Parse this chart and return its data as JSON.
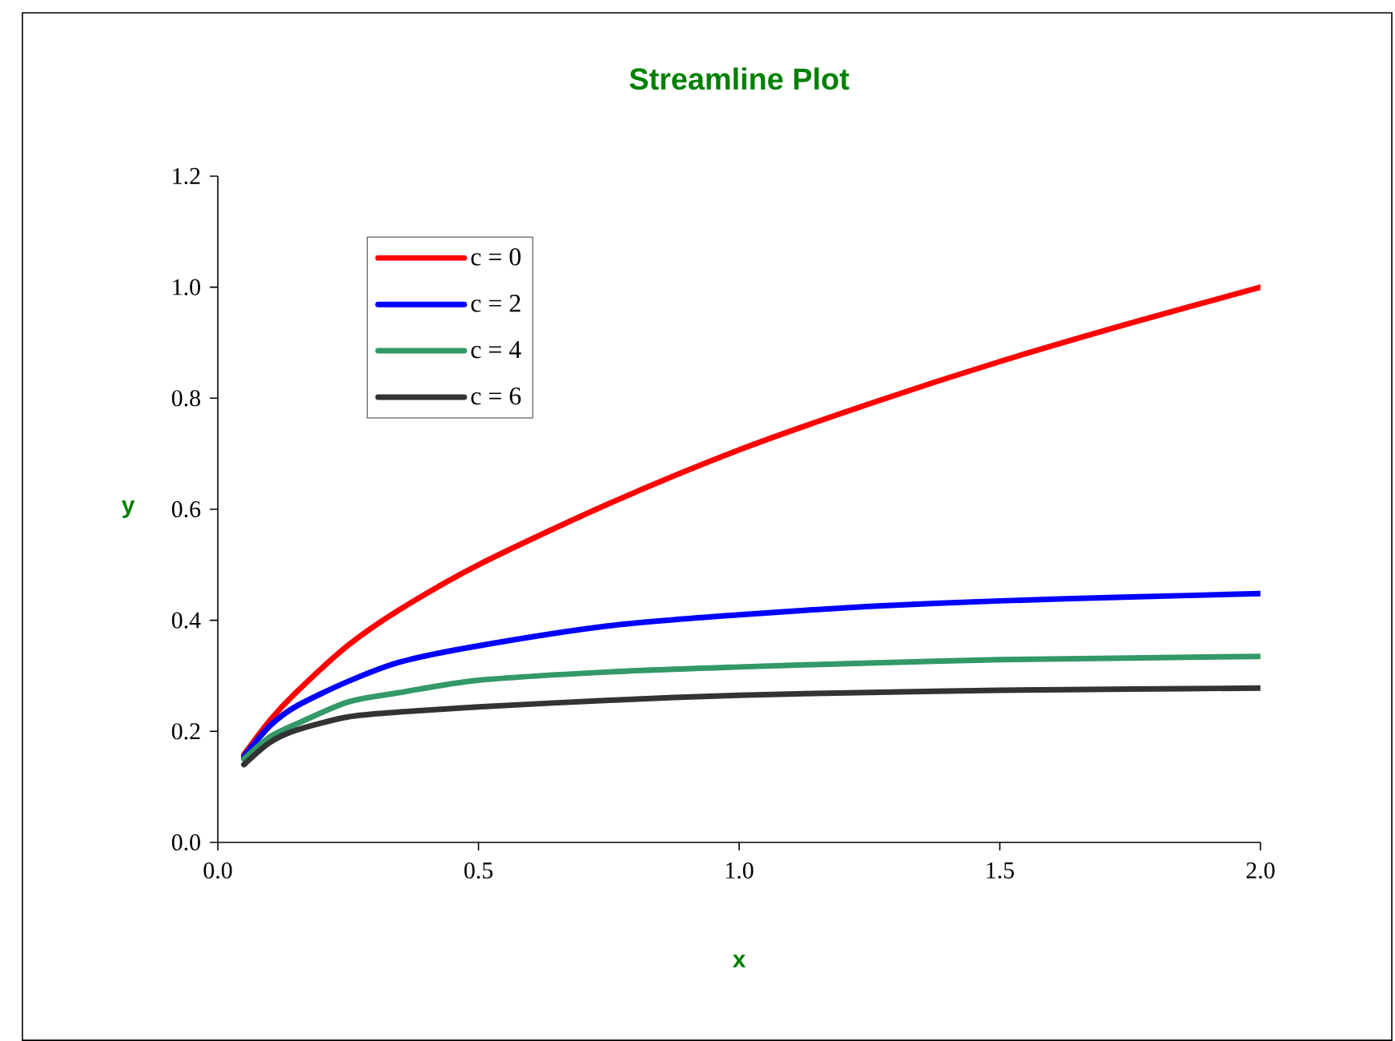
{
  "chart_data": {
    "type": "line",
    "title": "Streamline Plot",
    "xlabel": "x",
    "ylabel": "y",
    "x": [
      0.05,
      0.1,
      0.15,
      0.25,
      0.35,
      0.5,
      0.75,
      1.0,
      1.25,
      1.5,
      1.75,
      2.0
    ],
    "series": [
      {
        "name": "c = 0",
        "color": "#ff0000",
        "values": [
          0.158,
          0.22,
          0.27,
          0.355,
          0.42,
          0.5,
          0.61,
          0.707,
          0.79,
          0.866,
          0.935,
          1.0
        ]
      },
      {
        "name": "c = 2",
        "color": "#0000ff",
        "values": [
          0.155,
          0.21,
          0.245,
          0.29,
          0.325,
          0.354,
          0.39,
          0.41,
          0.425,
          0.435,
          0.442,
          0.448
        ]
      },
      {
        "name": "c = 4",
        "color": "#339966",
        "values": [
          0.15,
          0.19,
          0.213,
          0.253,
          0.27,
          0.292,
          0.307,
          0.316,
          0.323,
          0.329,
          0.332,
          0.335
        ]
      },
      {
        "name": "c = 6",
        "color": "#333333",
        "values": [
          0.14,
          0.18,
          0.202,
          0.226,
          0.235,
          0.244,
          0.256,
          0.265,
          0.27,
          0.274,
          0.276,
          0.278
        ]
      }
    ],
    "xlim": [
      0,
      2
    ],
    "ylim": [
      0,
      1.2
    ],
    "xticks": [
      {
        "value": 0,
        "label": "0.0"
      },
      {
        "value": 0.5,
        "label": "0.5"
      },
      {
        "value": 1,
        "label": "1.0"
      },
      {
        "value": 1.5,
        "label": "1.5"
      },
      {
        "value": 2,
        "label": "2.0"
      }
    ],
    "yticks": [
      {
        "value": 0,
        "label": "0.0"
      },
      {
        "value": 0.2,
        "label": "0.2"
      },
      {
        "value": 0.4,
        "label": "0.4"
      },
      {
        "value": 0.6,
        "label": "0.6"
      },
      {
        "value": 0.8,
        "label": "0.8"
      },
      {
        "value": 1,
        "label": "1.0"
      },
      {
        "value": 1.2,
        "label": "1.2"
      }
    ],
    "legend": "top left"
  }
}
